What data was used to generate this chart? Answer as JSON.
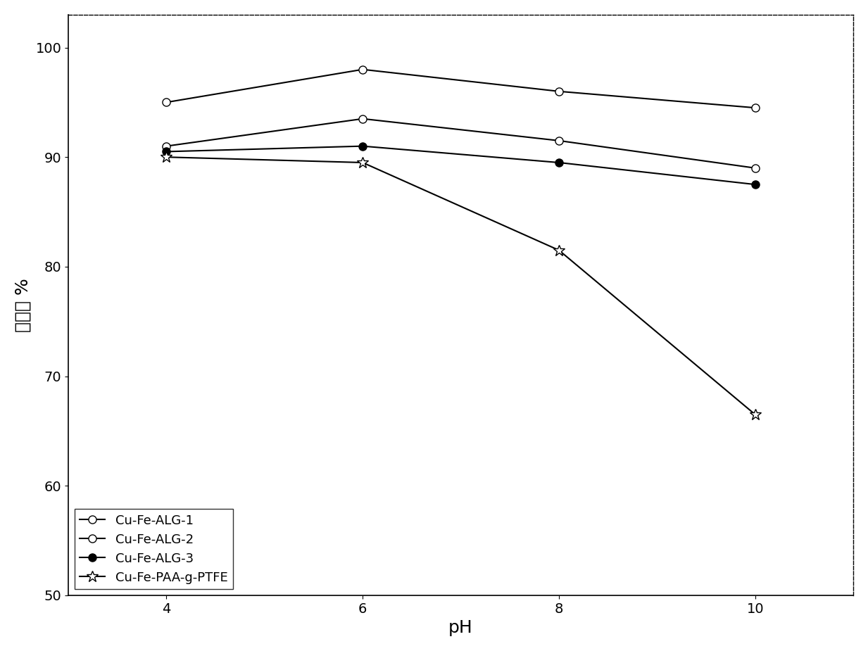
{
  "x": [
    4,
    6,
    8,
    10
  ],
  "series": [
    {
      "label": "Cu-Fe-ALG-1",
      "y": [
        91.0,
        93.5,
        91.5,
        89.0
      ],
      "marker": "o",
      "markerfacecolor": "white",
      "color": "#000000",
      "markersize": 8,
      "linewidth": 1.5
    },
    {
      "label": "Cu-Fe-ALG-2",
      "y": [
        95.0,
        98.0,
        96.0,
        94.5
      ],
      "marker": "o",
      "markerfacecolor": "white",
      "color": "#000000",
      "markersize": 8,
      "linewidth": 1.5
    },
    {
      "label": "Cu-Fe-ALG-3",
      "y": [
        90.5,
        91.0,
        89.5,
        87.5
      ],
      "marker": "o",
      "markerfacecolor": "#000000",
      "color": "#000000",
      "markersize": 8,
      "linewidth": 1.5
    },
    {
      "label": "Cu-Fe-PAA-g-PTFE",
      "y": [
        90.0,
        89.5,
        81.5,
        66.5
      ],
      "marker": "*",
      "markerfacecolor": "white",
      "color": "#000000",
      "markersize": 12,
      "linewidth": 1.5
    }
  ],
  "xlabel": "pH",
  "ylabel": "脱色率 %",
  "ylim": [
    50,
    103
  ],
  "xlim": [
    3,
    11
  ],
  "yticks": [
    50,
    60,
    70,
    80,
    90,
    100
  ],
  "xticks": [
    4,
    6,
    8,
    10
  ],
  "legend_loc": "lower left",
  "title": "",
  "background_color": "#ffffff",
  "figsize": [
    12.33,
    9.25
  ],
  "dpi": 100
}
